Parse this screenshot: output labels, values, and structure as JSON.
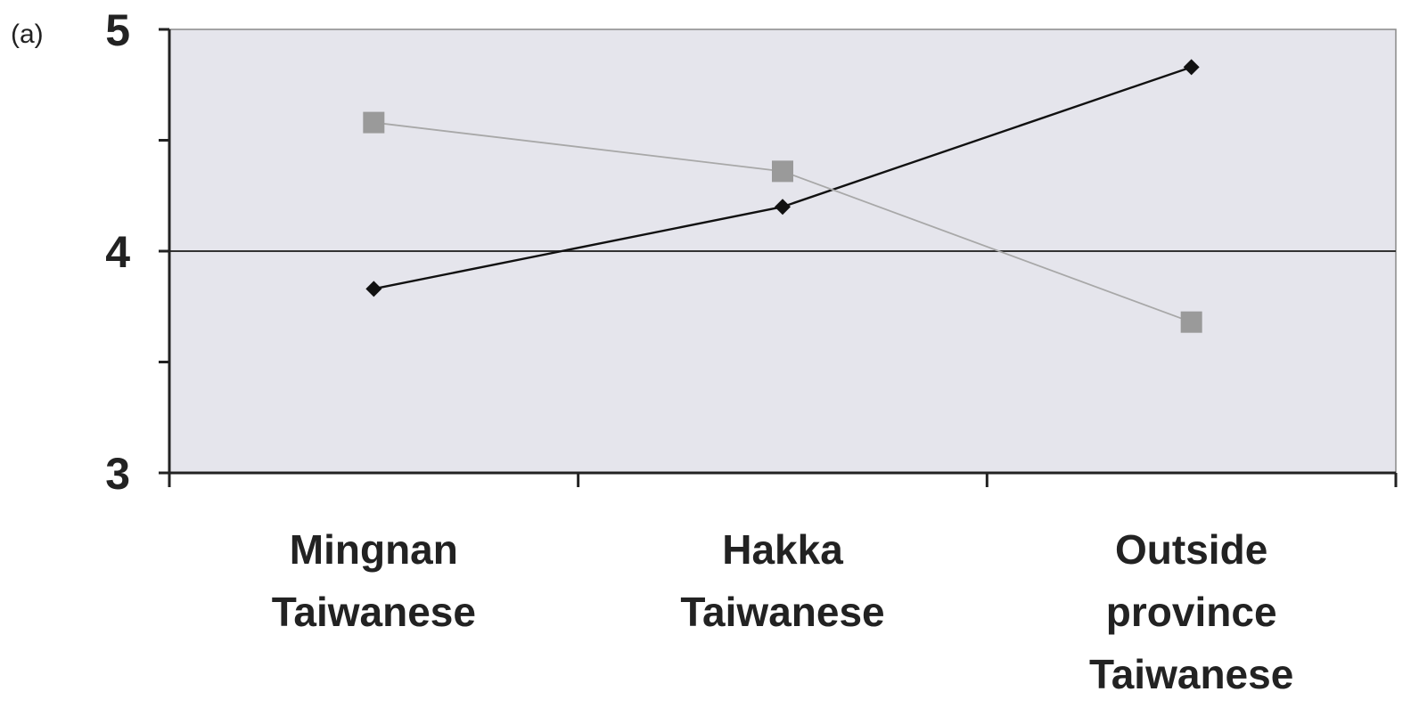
{
  "panel_label": "(a)",
  "colors": {
    "plot_background": "#e5e5ec",
    "axis": "#222222",
    "reference_line": "#333333",
    "series_dark": "#111111",
    "series_light": "#9a9a9a",
    "series_light_line": "#a8a8a8"
  },
  "chart_data": {
    "type": "line",
    "title": "",
    "xlabel": "",
    "ylabel": "",
    "categories": [
      [
        "Mingnan",
        "Taiwanese"
      ],
      [
        "Hakka",
        "Taiwanese"
      ],
      [
        "Outside",
        "province",
        "Taiwanese"
      ]
    ],
    "ylim": [
      3,
      5
    ],
    "y_ticks": [
      3,
      3.5,
      4,
      4.5,
      5
    ],
    "y_tick_labels": [
      "3",
      "",
      "4",
      "",
      "5"
    ],
    "reference_line_y": 4,
    "grid": false,
    "legend": "none",
    "series": [
      {
        "marker": "diamond",
        "color": "#111111",
        "values": [
          3.83,
          4.2,
          4.83
        ]
      },
      {
        "marker": "square",
        "color": "#9a9a9a",
        "values": [
          4.58,
          4.36,
          3.68
        ]
      }
    ]
  }
}
